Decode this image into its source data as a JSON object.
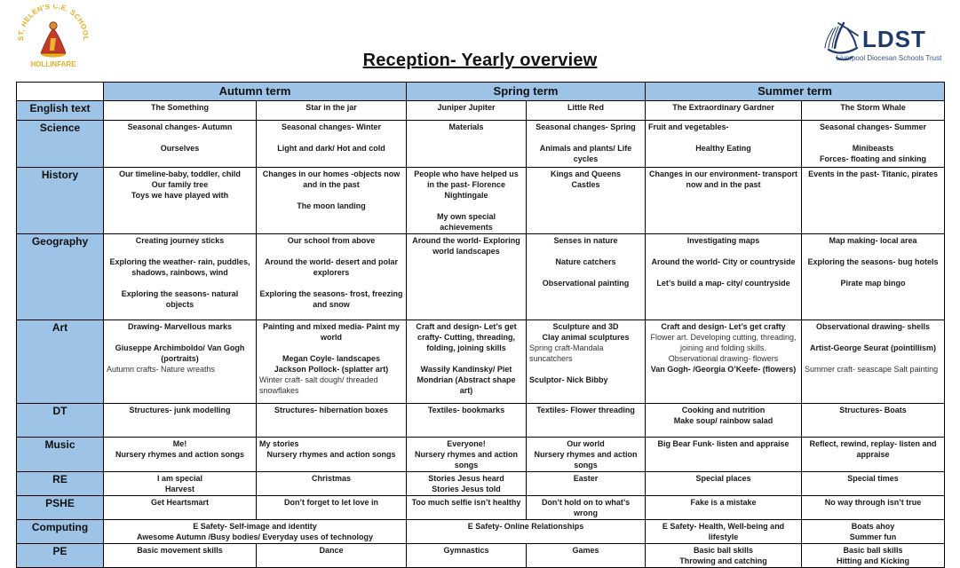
{
  "page": {
    "title": "Reception- Yearly overview"
  },
  "school_logo": {
    "arc_text": "ST. HELEN'S C.E. SCHOOL",
    "banner_text": "HOLLINFARE",
    "gold": "#EAAE1E",
    "red": "#C5392B"
  },
  "trust_logo": {
    "acronym": "LDST",
    "name": "Liverpool Diocesan Schools Trust",
    "navy": "#1E3A6E"
  },
  "table": {
    "header_color": "#9DC3E6",
    "term_headers": [
      "Autumn term",
      "Spring term",
      "Summer term"
    ],
    "rows": [
      {
        "subject": "English text",
        "cells": [
          [
            "The Something"
          ],
          [
            "Star in the jar"
          ],
          [
            "Juniper Jupiter"
          ],
          [
            "Little Red"
          ],
          [
            "The Extraordinary Gardner"
          ],
          [
            "The Storm Whale"
          ]
        ]
      },
      {
        "subject": "Science",
        "cells": [
          [
            "Seasonal changes- Autumn",
            "",
            "Ourselves"
          ],
          [
            "Seasonal changes- Winter",
            "",
            "Light and dark/ Hot and cold"
          ],
          [
            "Materials"
          ],
          [
            "Seasonal changes- Spring",
            "",
            "Animals and plants/ Life cycles"
          ],
          [
            {
              "t": "Fruit and vegetables-",
              "a": "l"
            },
            "",
            "Healthy Eating"
          ],
          [
            "Seasonal changes- Summer",
            "",
            "Minibeasts",
            "Forces- floating and sinking"
          ]
        ]
      },
      {
        "subject": "History",
        "cells": [
          [
            "Our timeline-baby, toddler, child",
            "Our family tree",
            "Toys we have played with"
          ],
          [
            "Changes in our homes -objects now and in the past",
            "",
            "The moon landing"
          ],
          [
            "People who have helped us in the past- Florence Nightingale",
            "",
            "My own special achievements"
          ],
          [
            "Kings and Queens",
            "Castles"
          ],
          [
            "Changes in our environment- transport now and in the past"
          ],
          [
            "Events in the past- Titanic, pirates"
          ]
        ]
      },
      {
        "subject": "Geography",
        "cells": [
          [
            "Creating journey sticks",
            "",
            "Exploring the weather- rain, puddles, shadows, rainbows, wind",
            "",
            "Exploring the seasons- natural objects"
          ],
          [
            "Our school from above",
            "",
            "Around the world- desert and polar explorers",
            "",
            "Exploring the seasons- frost, freezing and snow"
          ],
          [
            "Around the world- Exploring world landscapes"
          ],
          [
            "Senses in nature",
            "",
            "Nature catchers",
            "",
            "Observational painting"
          ],
          [
            "Investigating maps",
            "",
            "Around the world- City or countryside",
            "",
            "Let’s build a map- city/ countryside"
          ],
          [
            "Map making- local area",
            "",
            "Exploring the seasons- bug hotels",
            "",
            "Pirate map bingo"
          ]
        ]
      },
      {
        "subject": "Art",
        "cells": [
          [
            "Drawing- Marvellous marks",
            "",
            "Giuseppe Archimboldo/ Van Gogh (portraits)",
            {
              "t": "Autumn crafts- Nature wreaths",
              "b": false,
              "a": "l"
            }
          ],
          [
            "Painting and mixed media- Paint my world",
            "",
            "Megan Coyle- landscapes",
            "Jackson Pollock- (splatter art)",
            {
              "t": "Winter craft- salt dough/ threaded snowflakes",
              "b": false,
              "a": "l"
            }
          ],
          [
            "Craft and design- Let’s get crafty- Cutting, threading, folding, joining skills",
            "",
            "Wassily Kandinsky/ Piet Mondrian (Abstract shape art)"
          ],
          [
            "Sculpture and 3D",
            "Clay animal sculptures",
            {
              "t": "Spring craft-Mandala suncatchers",
              "b": false,
              "a": "l"
            },
            "",
            {
              "t": "Sculptor- Nick Bibby",
              "a": "l"
            }
          ],
          [
            "Craft and design- Let’s get crafty",
            {
              "t": "Flower art. Developing cutting, threading, joining and folding skills.",
              "b": false
            },
            {
              "t": "Observational drawing- flowers",
              "b": false
            },
            "Van Gogh- /Georgia O’Keefe- (flowers)"
          ],
          [
            "Observational drawing- shells",
            "",
            "Artist-George Seurat (pointillism)",
            "",
            {
              "t": "Summer craft- seascape Salt painting",
              "b": false,
              "a": "l"
            }
          ]
        ]
      },
      {
        "subject": "DT",
        "cells": [
          [
            "Structures- junk modelling"
          ],
          [
            "Structures- hibernation boxes"
          ],
          [
            "Textiles- bookmarks"
          ],
          [
            "Textiles- Flower threading"
          ],
          [
            "Cooking and nutrition",
            "Make soup/ rainbow salad"
          ],
          [
            "Structures- Boats"
          ]
        ]
      },
      {
        "subject": "Music",
        "cells": [
          [
            "Me!",
            "Nursery rhymes and action songs"
          ],
          [
            {
              "t": "My stories",
              "a": "l"
            },
            "Nursery rhymes and action songs"
          ],
          [
            "Everyone!",
            "Nursery rhymes and action songs"
          ],
          [
            "Our world",
            "Nursery rhymes and action songs"
          ],
          [
            "Big Bear Funk- listen and appraise"
          ],
          [
            "Reflect, rewind, replay- listen and appraise"
          ]
        ]
      },
      {
        "subject": "RE",
        "cells": [
          [
            "I am special",
            "Harvest"
          ],
          [
            "Christmas"
          ],
          [
            "Stories Jesus heard",
            "Stories Jesus told"
          ],
          [
            "Easter"
          ],
          [
            "Special places"
          ],
          [
            "Special times"
          ]
        ]
      },
      {
        "subject": "PSHE",
        "cells": [
          [
            "Get Heartsmart"
          ],
          [
            "Don’t forget to let love in"
          ],
          [
            "Too much selfie isn’t healthy"
          ],
          [
            "Don’t hold on to what’s wrong"
          ],
          [
            "Fake is a mistake"
          ],
          [
            "No way through isn’t true"
          ]
        ]
      },
      {
        "subject": "Computing",
        "cells": [
          {
            "span": 2,
            "lines": [
              "E Safety- Self-image and identity",
              "Awesome Autumn /Busy bodies/ Everyday uses of technology"
            ]
          },
          {
            "span": 2,
            "lines": [
              "E Safety- Online Relationships"
            ]
          },
          {
            "lines": [
              "E Safety- Health, Well-being and lifestyle"
            ]
          },
          {
            "lines": [
              "Boats ahoy",
              "Summer fun"
            ]
          }
        ]
      },
      {
        "subject": "PE",
        "cells": [
          [
            "Basic movement skills"
          ],
          [
            "Dance"
          ],
          [
            "Gymnastics"
          ],
          [
            "Games"
          ],
          [
            "Basic ball skills",
            "Throwing and catching"
          ],
          [
            "Basic ball skills",
            "Hitting and Kicking"
          ]
        ]
      }
    ]
  }
}
